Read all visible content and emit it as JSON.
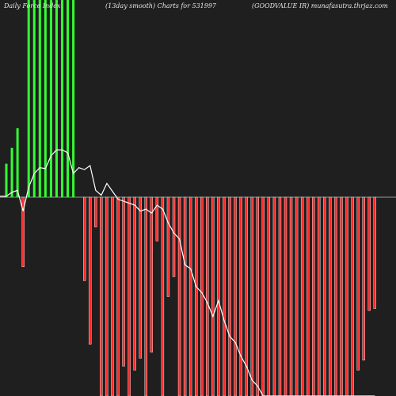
{
  "header": {
    "left": "Daily Force Index",
    "center": "(13day smooth) Charts for 531997",
    "right": "(GOODVALUE IR) munafasutra.thrjaz.com"
  },
  "colors": {
    "background": "#1f1f1f",
    "positive_bar": "#33ff33",
    "negative_bar": "#ff2a2a",
    "bar_edge": "#ffffff",
    "line": "#ffffff",
    "zero_line": "#9a9a9a"
  },
  "chart_data": {
    "type": "bar",
    "series_type_overlay": "line",
    "ylim": [
      -100,
      100
    ],
    "grid": false,
    "bars": [
      17,
      25,
      35,
      -35,
      100,
      100,
      100,
      100,
      100,
      100,
      100,
      100,
      100,
      0,
      -42,
      -74,
      -15,
      -100,
      -100,
      -100,
      -100,
      -85,
      -100,
      -87,
      -81,
      -100,
      -78,
      -22,
      -100,
      -50,
      -40,
      -100,
      -100,
      -100,
      -100,
      -100,
      -100,
      -100,
      -100,
      -100,
      -100,
      -100,
      -100,
      -100,
      -100,
      -100,
      -100,
      -100,
      -100,
      -100,
      -100,
      -100,
      -100,
      -100,
      -100,
      -100,
      -100,
      -100,
      -100,
      -100,
      -100,
      -100,
      -100,
      -87,
      -82,
      -57,
      -56
    ],
    "line": [
      0.5,
      2.5,
      3.5,
      -7,
      5,
      12,
      15,
      14.5,
      21,
      24,
      24,
      22.5,
      12,
      15,
      14,
      16,
      3.5,
      1,
      7,
      3,
      -1,
      -2,
      -3,
      -4,
      -7,
      -6,
      -8,
      -4,
      -6,
      -13,
      -18,
      -21,
      -34,
      -36,
      -45,
      -48,
      -53,
      -60,
      -52,
      -62,
      -70,
      -73,
      -80,
      -85,
      -92,
      -95,
      -100,
      -100,
      -100,
      -100,
      -100,
      -100,
      -100,
      -100,
      -100,
      -100,
      -100,
      -100,
      -100,
      -100,
      -100,
      -100,
      -100,
      -100,
      -100,
      -100,
      -100
    ]
  }
}
